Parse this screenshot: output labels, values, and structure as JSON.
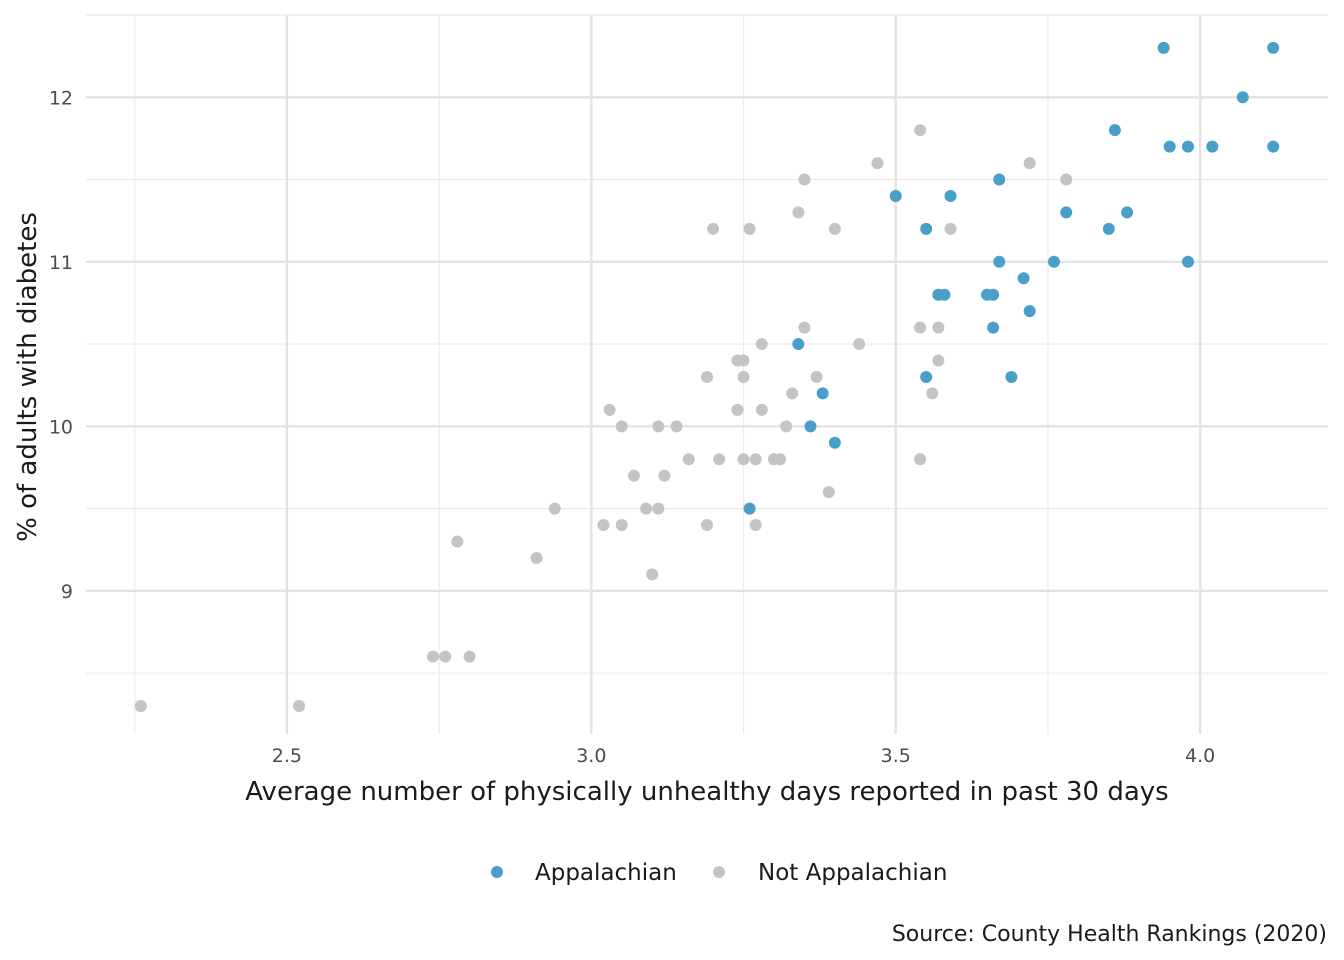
{
  "chart_data": {
    "type": "scatter",
    "xlabel": "Average number of physically unhealthy days reported in past 30 days",
    "ylabel": "% of adults with diabetes",
    "caption": "Source: County Health Rankings (2020)",
    "xlim": [
      2.17,
      4.21
    ],
    "ylim": [
      8.13,
      12.5
    ],
    "x_ticks": [
      2.5,
      3.0,
      3.5,
      4.0
    ],
    "x_tick_labels": [
      "2.5",
      "3.0",
      "3.5",
      "4.0"
    ],
    "y_ticks": [
      9,
      10,
      11,
      12
    ],
    "y_tick_labels": [
      "9",
      "10",
      "11",
      "12"
    ],
    "grid": true,
    "legend_position": "bottom",
    "series": [
      {
        "name": "Appalachian",
        "color": "#4a9fca",
        "points": [
          [
            3.26,
            9.5
          ],
          [
            3.34,
            10.5
          ],
          [
            3.36,
            10.0
          ],
          [
            3.38,
            10.2
          ],
          [
            3.4,
            9.9
          ],
          [
            3.5,
            11.4
          ],
          [
            3.55,
            10.3
          ],
          [
            3.55,
            11.2
          ],
          [
            3.57,
            10.8
          ],
          [
            3.58,
            10.8
          ],
          [
            3.59,
            11.4
          ],
          [
            3.65,
            10.8
          ],
          [
            3.66,
            10.6
          ],
          [
            3.66,
            10.8
          ],
          [
            3.67,
            11.0
          ],
          [
            3.67,
            11.5
          ],
          [
            3.69,
            10.3
          ],
          [
            3.71,
            10.9
          ],
          [
            3.72,
            10.7
          ],
          [
            3.76,
            11.0
          ],
          [
            3.78,
            11.3
          ],
          [
            3.85,
            11.2
          ],
          [
            3.86,
            11.8
          ],
          [
            3.88,
            11.3
          ],
          [
            3.94,
            12.3
          ],
          [
            3.95,
            11.7
          ],
          [
            3.98,
            11.7
          ],
          [
            3.98,
            11.0
          ],
          [
            4.02,
            11.7
          ],
          [
            4.07,
            12.0
          ],
          [
            4.12,
            12.3
          ],
          [
            4.12,
            11.7
          ]
        ]
      },
      {
        "name": "Not Appalachian",
        "color": "#c4c4c4",
        "points": [
          [
            2.26,
            8.3
          ],
          [
            2.52,
            8.3
          ],
          [
            2.74,
            8.6
          ],
          [
            2.76,
            8.6
          ],
          [
            2.78,
            9.3
          ],
          [
            2.8,
            8.6
          ],
          [
            2.91,
            9.2
          ],
          [
            2.94,
            9.5
          ],
          [
            3.02,
            9.4
          ],
          [
            3.03,
            10.1
          ],
          [
            3.05,
            10.0
          ],
          [
            3.05,
            9.4
          ],
          [
            3.07,
            9.7
          ],
          [
            3.09,
            9.5
          ],
          [
            3.1,
            9.1
          ],
          [
            3.11,
            10.0
          ],
          [
            3.11,
            9.5
          ],
          [
            3.12,
            9.7
          ],
          [
            3.14,
            10.0
          ],
          [
            3.16,
            9.8
          ],
          [
            3.19,
            9.4
          ],
          [
            3.19,
            10.3
          ],
          [
            3.2,
            11.2
          ],
          [
            3.21,
            9.8
          ],
          [
            3.24,
            10.4
          ],
          [
            3.24,
            10.1
          ],
          [
            3.25,
            10.3
          ],
          [
            3.25,
            10.4
          ],
          [
            3.25,
            9.8
          ],
          [
            3.26,
            11.2
          ],
          [
            3.27,
            9.4
          ],
          [
            3.27,
            9.8
          ],
          [
            3.28,
            10.5
          ],
          [
            3.28,
            10.1
          ],
          [
            3.3,
            9.8
          ],
          [
            3.31,
            9.8
          ],
          [
            3.32,
            10.0
          ],
          [
            3.33,
            10.2
          ],
          [
            3.34,
            11.3
          ],
          [
            3.35,
            11.5
          ],
          [
            3.35,
            10.6
          ],
          [
            3.37,
            10.3
          ],
          [
            3.39,
            9.6
          ],
          [
            3.4,
            11.2
          ],
          [
            3.44,
            10.5
          ],
          [
            3.47,
            11.6
          ],
          [
            3.54,
            11.8
          ],
          [
            3.54,
            10.6
          ],
          [
            3.54,
            9.8
          ],
          [
            3.56,
            10.2
          ],
          [
            3.57,
            10.6
          ],
          [
            3.57,
            10.4
          ],
          [
            3.59,
            11.2
          ],
          [
            3.72,
            11.6
          ],
          [
            3.78,
            11.5
          ]
        ]
      }
    ]
  }
}
